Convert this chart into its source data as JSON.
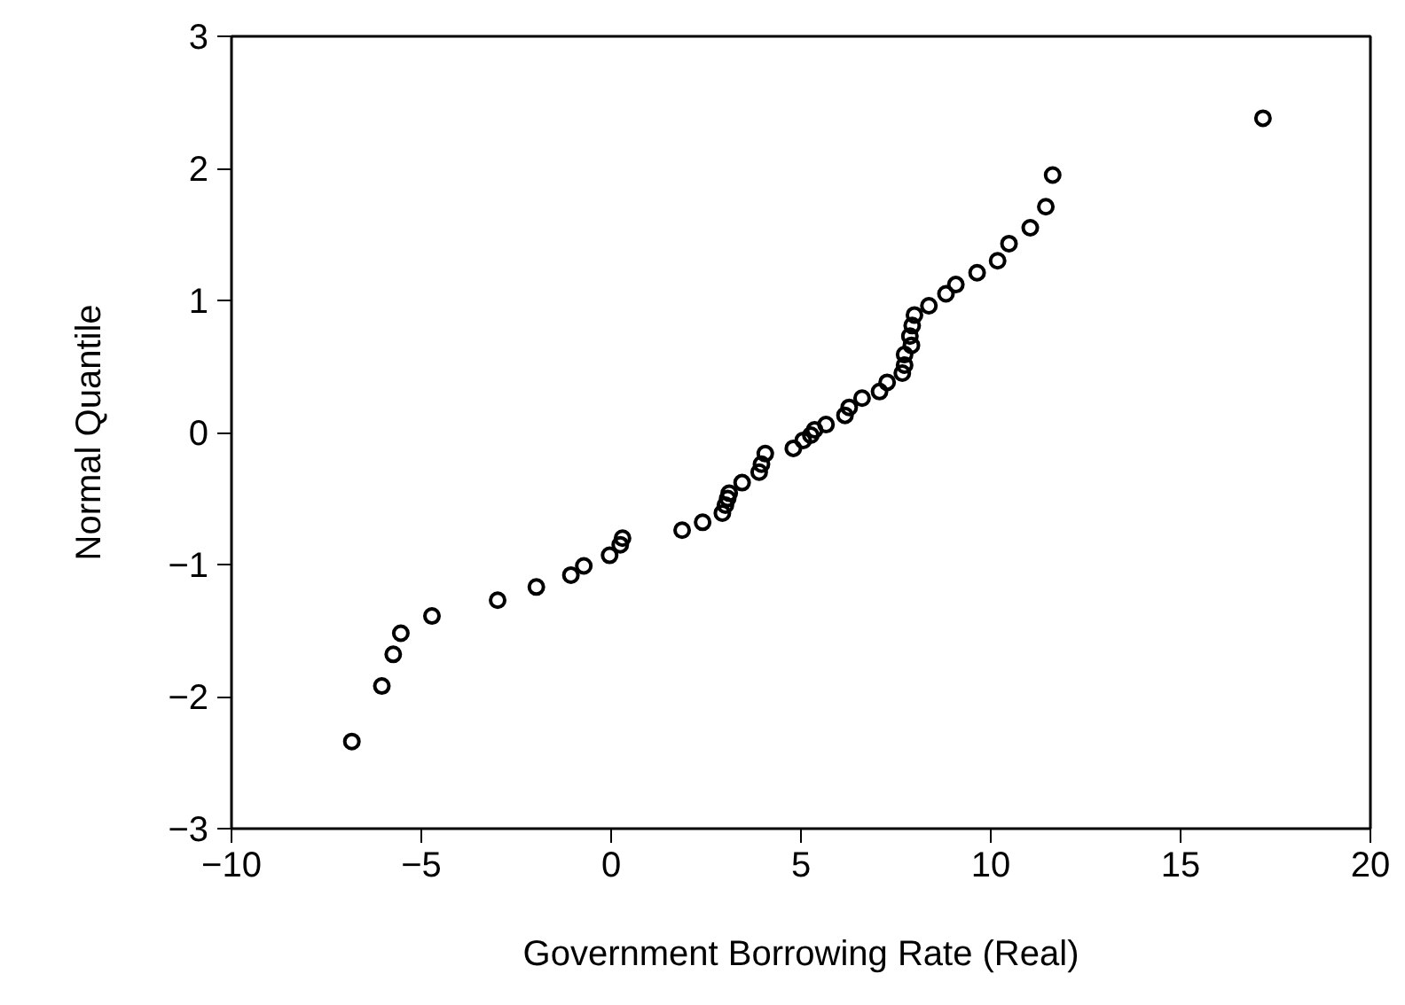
{
  "chart_data": {
    "type": "scatter",
    "xlabel": "Government Borrowing Rate (Real)",
    "ylabel": "Normal Quantile",
    "x": [
      -6.83,
      -6.04,
      -5.74,
      -5.54,
      -4.72,
      -2.99,
      -1.97,
      -1.06,
      -0.72,
      -0.04,
      0.24,
      0.3,
      1.87,
      2.41,
      2.93,
      3.01,
      3.07,
      3.11,
      3.45,
      3.9,
      3.96,
      4.06,
      4.8,
      5.06,
      5.26,
      5.36,
      5.66,
      6.16,
      6.27,
      6.61,
      7.07,
      7.27,
      7.67,
      7.73,
      7.73,
      7.91,
      7.87,
      7.93,
      7.99,
      8.37,
      8.82,
      9.08,
      9.64,
      10.18,
      10.48,
      11.04,
      11.45,
      11.63,
      17.17
    ],
    "values": [
      -2.34,
      -1.92,
      -1.68,
      -1.52,
      -1.39,
      -1.27,
      -1.17,
      -1.08,
      -1.01,
      -0.93,
      -0.85,
      -0.8,
      -0.74,
      -0.68,
      -0.61,
      -0.55,
      -0.5,
      -0.46,
      -0.38,
      -0.3,
      -0.24,
      -0.16,
      -0.12,
      -0.06,
      -0.02,
      0.02,
      0.06,
      0.13,
      0.19,
      0.26,
      0.31,
      0.38,
      0.45,
      0.51,
      0.59,
      0.66,
      0.73,
      0.81,
      0.89,
      0.96,
      1.05,
      1.12,
      1.21,
      1.3,
      1.43,
      1.55,
      1.71,
      1.95,
      2.38
    ],
    "color": "#000000",
    "marker": "circle",
    "grid": false,
    "xlim": [
      -10,
      20
    ],
    "xticks": [
      -10,
      -5,
      0,
      5,
      10,
      15,
      20
    ],
    "ylim": [
      -3,
      3
    ],
    "yticks": [
      -3,
      -2,
      -1,
      0,
      1,
      2,
      3
    ]
  }
}
